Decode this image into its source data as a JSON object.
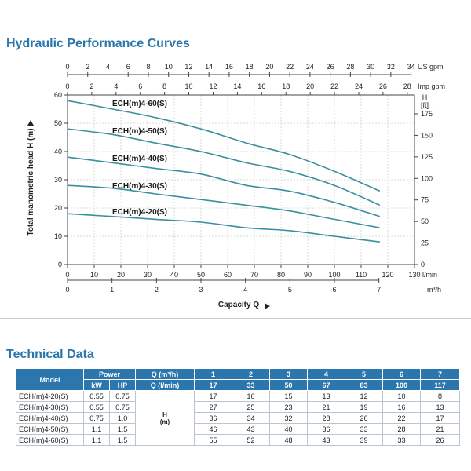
{
  "headings": {
    "curves": "Hydraulic Performance Curves",
    "technical": "Technical Data"
  },
  "colors": {
    "accent": "#2b76ad",
    "curve": "#3a8fa0",
    "grid": "#cfcfcf"
  },
  "chart_data": {
    "type": "line",
    "title": "Hydraulic Performance Curves",
    "xlabel": "Capacity Q",
    "ylabel": "Total manometric head H (m)",
    "grid": true,
    "xlim": [
      0,
      130
    ],
    "ylim": [
      0,
      60
    ],
    "xunit": "l/min",
    "yunit": "H (m)",
    "secondary_axes": {
      "us_gpm": {
        "unit": "US gpm",
        "ticks": [
          "0",
          "2",
          "4",
          "6",
          "8",
          "10",
          "12",
          "14",
          "16",
          "18",
          "20",
          "22",
          "24",
          "26",
          "28",
          "30",
          "32",
          "34"
        ]
      },
      "imp_gpm": {
        "unit": "Imp gpm",
        "ticks": [
          "0",
          "2",
          "4",
          "6",
          "8",
          "10",
          "12",
          "14",
          "16",
          "18",
          "20",
          "22",
          "24",
          "26",
          "28"
        ]
      },
      "feet": {
        "unit": "H",
        "unit2": "[ft]",
        "ticks": [
          "0",
          "25",
          "50",
          "75",
          "100",
          "125",
          "150",
          "175"
        ]
      },
      "m3h": {
        "unit": "m³/h",
        "ticks": [
          "0",
          "1",
          "2",
          "3",
          "4",
          "5",
          "6",
          "7"
        ]
      }
    },
    "x_ticks": [
      "0",
      "10",
      "20",
      "30",
      "40",
      "50",
      "60",
      "70",
      "80",
      "90",
      "100",
      "110",
      "120",
      "130"
    ],
    "y_ticks": [
      "0",
      "10",
      "20",
      "30",
      "40",
      "50",
      "60"
    ],
    "series": [
      {
        "name": "ECH(m)4-60(S)",
        "x": [
          0,
          17,
          33,
          50,
          67,
          83,
          100,
          117
        ],
        "values": [
          58,
          55,
          52,
          48,
          43,
          39,
          33,
          26
        ]
      },
      {
        "name": "ECH(m)4-50(S)",
        "x": [
          0,
          17,
          33,
          50,
          67,
          83,
          100,
          117
        ],
        "values": [
          48,
          46,
          43,
          40,
          36,
          33,
          28,
          21
        ]
      },
      {
        "name": "ECH(m)4-40(S)",
        "x": [
          0,
          17,
          33,
          50,
          67,
          83,
          100,
          117
        ],
        "values": [
          38,
          36,
          34,
          32,
          28,
          26,
          22,
          17
        ]
      },
      {
        "name": "ECH(m)4-30(S)",
        "x": [
          0,
          17,
          33,
          50,
          67,
          83,
          100,
          117
        ],
        "values": [
          28,
          27,
          25,
          23,
          21,
          19,
          16,
          13
        ]
      },
      {
        "name": "ECH(m)4-20(S)",
        "x": [
          0,
          17,
          33,
          50,
          67,
          83,
          100,
          117
        ],
        "values": [
          18,
          17,
          16,
          15,
          13,
          12,
          10,
          8
        ]
      }
    ]
  },
  "table": {
    "h_model": "Model",
    "h_power": "Power",
    "h_q_m3h": "Q (m³/h)",
    "h_kw": "kW",
    "h_hp": "HP",
    "h_q_lmin": "Q (l/min)",
    "q_m3h": [
      "1",
      "2",
      "3",
      "4",
      "5",
      "6",
      "7"
    ],
    "q_lmin": [
      "17",
      "33",
      "50",
      "67",
      "83",
      "100",
      "117"
    ],
    "h_label_1": "H",
    "h_label_2": "(m)",
    "rows": [
      {
        "model": "ECH(m)4-20(S)",
        "kw": "0.55",
        "hp": "0.75",
        "h": [
          "17",
          "16",
          "15",
          "13",
          "12",
          "10",
          "8"
        ]
      },
      {
        "model": "ECH(m)4-30(S)",
        "kw": "0.55",
        "hp": "0.75",
        "h": [
          "27",
          "25",
          "23",
          "21",
          "19",
          "16",
          "13"
        ]
      },
      {
        "model": "ECH(m)4-40(S)",
        "kw": "0.75",
        "hp": "1.0",
        "h": [
          "36",
          "34",
          "32",
          "28",
          "26",
          "22",
          "17"
        ]
      },
      {
        "model": "ECH(m)4-50(S)",
        "kw": "1.1",
        "hp": "1.5",
        "h": [
          "46",
          "43",
          "40",
          "36",
          "33",
          "28",
          "21"
        ]
      },
      {
        "model": "ECH(m)4-60(S)",
        "kw": "1.1",
        "hp": "1.5",
        "h": [
          "55",
          "52",
          "48",
          "43",
          "39",
          "33",
          "26"
        ]
      }
    ]
  }
}
